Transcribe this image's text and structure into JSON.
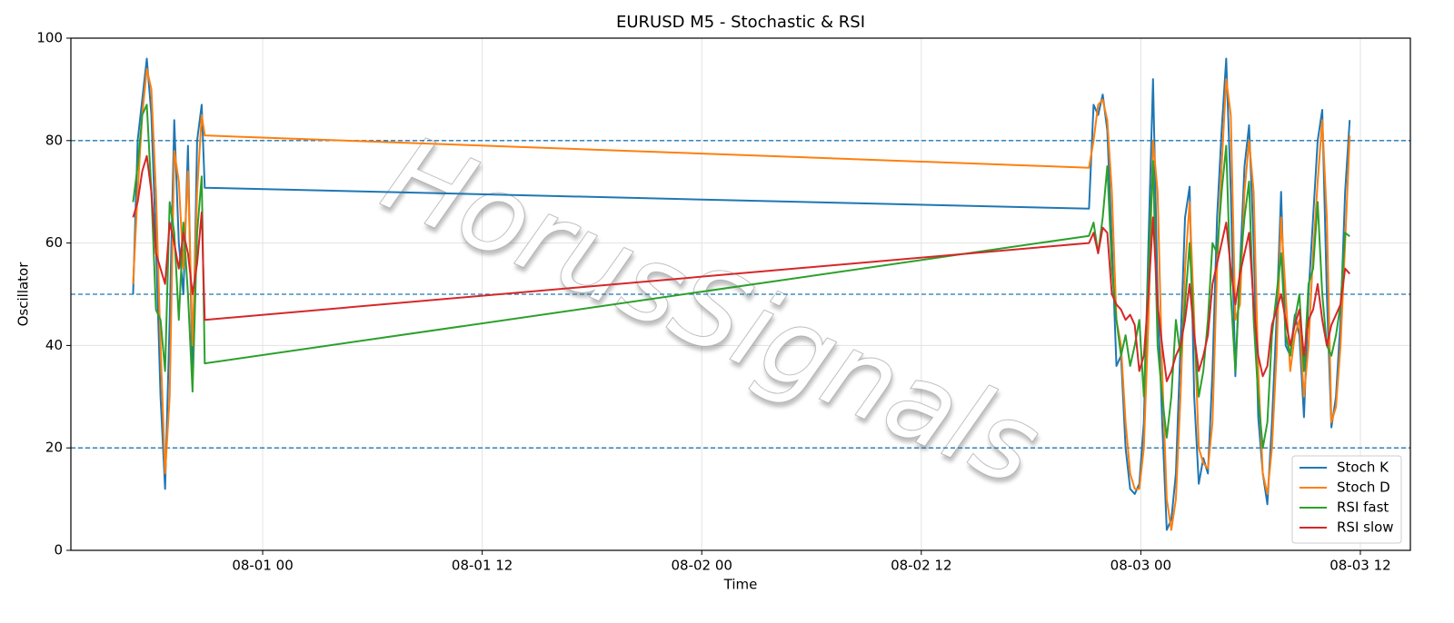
{
  "chart_data": {
    "type": "line",
    "title": "EURUSD M5 - Stochastic & RSI",
    "x_label": "Time",
    "y_label": "Oscillator",
    "watermark": "HorusSignals",
    "ylim": [
      0,
      100
    ],
    "yticks": [
      0,
      20,
      40,
      60,
      80,
      100
    ],
    "xlim": [
      "07-31 13:31",
      "08-03 14:44"
    ],
    "xticks": [
      {
        "value": "08-01 00:00",
        "label": "08-01 00"
      },
      {
        "value": "08-01 12:00",
        "label": "08-01 12"
      },
      {
        "value": "08-02 00:00",
        "label": "08-02 00"
      },
      {
        "value": "08-02 12:00",
        "label": "08-02 12"
      },
      {
        "value": "08-03 00:00",
        "label": "08-03 00"
      },
      {
        "value": "08-03 12:00",
        "label": "08-03 12"
      }
    ],
    "grid": true,
    "reference_lines": [
      80,
      50,
      20
    ],
    "reference_color": "#1f77b4",
    "legend": "lower right",
    "x": [
      "07-31 16:55",
      "07-31 17:10",
      "07-31 17:25",
      "07-31 17:40",
      "07-31 17:55",
      "07-31 18:10",
      "07-31 18:25",
      "07-31 18:40",
      "07-31 18:55",
      "07-31 19:10",
      "07-31 19:25",
      "07-31 19:40",
      "07-31 19:55",
      "07-31 20:10",
      "07-31 20:25",
      "07-31 20:40",
      "07-31 20:50",
      "08-02 21:10",
      "08-02 21:25",
      "08-02 21:40",
      "08-02 21:55",
      "08-02 22:10",
      "08-02 22:25",
      "08-02 22:40",
      "08-02 22:55",
      "08-02 23:10",
      "08-02 23:25",
      "08-02 23:40",
      "08-02 23:55",
      "08-03 00:10",
      "08-03 00:25",
      "08-03 00:40",
      "08-03 00:55",
      "08-03 01:10",
      "08-03 01:25",
      "08-03 01:40",
      "08-03 01:55",
      "08-03 02:10",
      "08-03 02:25",
      "08-03 02:40",
      "08-03 02:55",
      "08-03 03:10",
      "08-03 03:25",
      "08-03 03:40",
      "08-03 03:55",
      "08-03 04:10",
      "08-03 04:25",
      "08-03 04:40",
      "08-03 04:55",
      "08-03 05:10",
      "08-03 05:25",
      "08-03 05:40",
      "08-03 05:55",
      "08-03 06:10",
      "08-03 06:25",
      "08-03 06:40",
      "08-03 06:55",
      "08-03 07:10",
      "08-03 07:25",
      "08-03 07:40",
      "08-03 07:55",
      "08-03 08:10",
      "08-03 08:25",
      "08-03 08:40",
      "08-03 08:55",
      "08-03 09:10",
      "08-03 09:25",
      "08-03 09:40",
      "08-03 09:55",
      "08-03 10:10",
      "08-03 10:25",
      "08-03 10:40",
      "08-03 10:55",
      "08-03 11:10",
      "08-03 11:25"
    ],
    "series": [
      {
        "name": "Stoch K",
        "color": "#1f77b4",
        "values": [
          50,
          80,
          88,
          96,
          85,
          60,
          30,
          12,
          45,
          84,
          60,
          50,
          79,
          33,
          80,
          87,
          70.8,
          66.7,
          87,
          85,
          89,
          82,
          60,
          36,
          38,
          20,
          12,
          11,
          13,
          25,
          60,
          92,
          50,
          25,
          4,
          6,
          15,
          40,
          65,
          71,
          30,
          13,
          18,
          15,
          35,
          65,
          82,
          96,
          70,
          34,
          55,
          75,
          83,
          60,
          26,
          15,
          9,
          25,
          45,
          70,
          40,
          38,
          46,
          42,
          26,
          50,
          65,
          80,
          86,
          50,
          24,
          30,
          45,
          70,
          84
        ]
      },
      {
        "name": "Stoch D",
        "color": "#ff7f0e",
        "values": [
          52,
          70,
          85,
          94,
          90,
          70,
          40,
          15,
          30,
          78,
          72,
          55,
          74,
          40,
          70,
          85,
          81,
          74.7,
          80,
          87,
          88,
          84,
          70,
          45,
          40,
          25,
          15,
          12,
          12,
          20,
          45,
          80,
          70,
          35,
          10,
          4,
          10,
          30,
          55,
          68,
          45,
          20,
          17,
          16,
          25,
          55,
          75,
          92,
          85,
          45,
          48,
          70,
          80,
          70,
          35,
          15,
          11,
          20,
          38,
          65,
          50,
          35,
          42,
          45,
          30,
          40,
          58,
          72,
          84,
          65,
          25,
          28,
          40,
          60,
          81
        ]
      },
      {
        "name": "RSI fast",
        "color": "#2ca02c",
        "values": [
          68,
          75,
          85,
          87,
          70,
          47,
          45,
          35,
          68,
          62,
          45,
          64,
          50,
          31,
          62,
          73,
          36.5,
          61.4,
          64,
          58,
          65,
          75,
          55,
          45,
          38,
          42,
          36,
          40,
          45,
          30,
          55,
          76,
          40,
          30,
          22,
          30,
          45,
          38,
          48,
          60,
          42,
          30,
          35,
          45,
          60,
          58,
          70,
          79,
          50,
          35,
          55,
          65,
          72,
          45,
          30,
          20,
          25,
          42,
          50,
          58,
          42,
          38,
          45,
          50,
          35,
          52,
          55,
          68,
          50,
          40,
          38,
          42,
          48,
          62,
          61.3
        ]
      },
      {
        "name": "RSI slow",
        "color": "#d62728",
        "values": [
          65,
          68,
          74,
          77,
          70,
          58,
          55,
          52,
          64,
          60,
          55,
          62,
          58,
          50,
          56,
          66,
          45,
          60,
          62,
          58,
          63,
          62,
          50,
          48,
          47,
          45,
          46,
          44,
          35,
          38,
          50,
          65,
          48,
          40,
          33,
          35,
          38,
          40,
          45,
          52,
          42,
          35,
          38,
          42,
          52,
          56,
          60,
          64,
          55,
          48,
          54,
          58,
          62,
          48,
          38,
          34,
          36,
          44,
          47,
          50,
          45,
          40,
          44,
          47,
          38,
          45,
          47,
          52,
          45,
          40,
          44,
          46,
          48,
          55,
          54
        ]
      }
    ]
  }
}
